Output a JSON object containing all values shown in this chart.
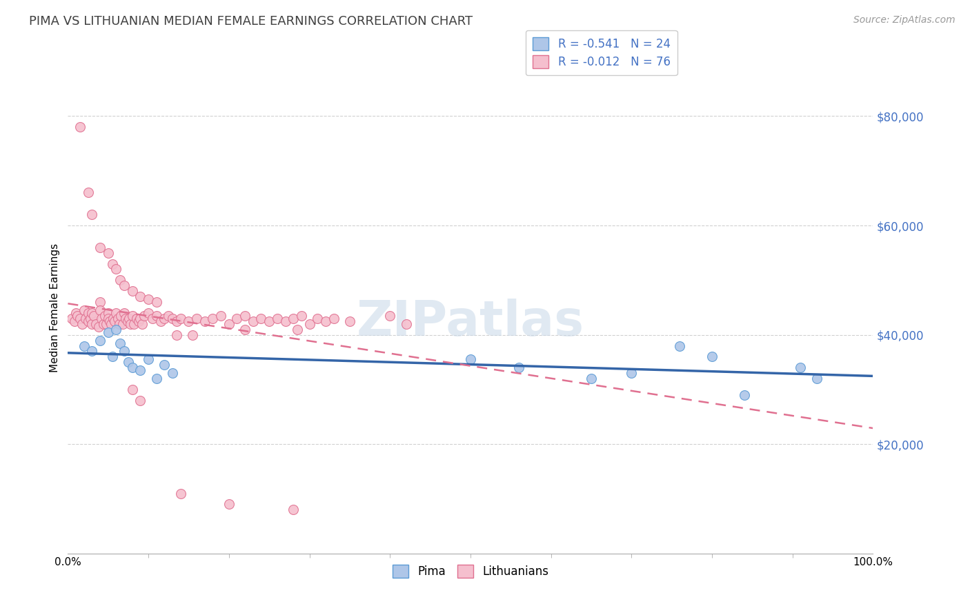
{
  "title": "PIMA VS LITHUANIAN MEDIAN FEMALE EARNINGS CORRELATION CHART",
  "source": "Source: ZipAtlas.com",
  "ylabel": "Median Female Earnings",
  "x_min": 0.0,
  "x_max": 1.0,
  "y_min": 0,
  "y_max": 90000,
  "yticks": [
    20000,
    40000,
    60000,
    80000
  ],
  "ytick_labels": [
    "$20,000",
    "$40,000",
    "$60,000",
    "$80,000"
  ],
  "xtick_labels": [
    "0.0%",
    "100.0%"
  ],
  "background_color": "#ffffff",
  "grid_color": "#d0d0d0",
  "pima_color": "#aec6e8",
  "pima_edge_color": "#5b9bd5",
  "lith_color": "#f5bfce",
  "lith_edge_color": "#e07090",
  "pima_line_color": "#3465a8",
  "lith_line_color": "#e07090",
  "legend_R_pima": "R = -0.541",
  "legend_N_pima": "N = 24",
  "legend_R_lith": "R = -0.012",
  "legend_N_lith": "N = 76",
  "legend_label_pima": "Pima",
  "legend_label_lith": "Lithuanians",
  "watermark": "ZIPatlas",
  "pima_x": [
    0.02,
    0.03,
    0.04,
    0.05,
    0.055,
    0.06,
    0.065,
    0.07,
    0.075,
    0.08,
    0.09,
    0.1,
    0.11,
    0.12,
    0.13,
    0.5,
    0.56,
    0.65,
    0.7,
    0.76,
    0.8,
    0.84,
    0.91,
    0.93
  ],
  "pima_y": [
    38000,
    37000,
    39000,
    40500,
    36000,
    41000,
    38500,
    37000,
    35000,
    34000,
    33500,
    35500,
    32000,
    34500,
    33000,
    35500,
    34000,
    32000,
    33000,
    38000,
    36000,
    29000,
    34000,
    32000
  ],
  "lith_x": [
    0.005,
    0.008,
    0.01,
    0.012,
    0.015,
    0.018,
    0.02,
    0.022,
    0.025,
    0.025,
    0.028,
    0.03,
    0.03,
    0.032,
    0.035,
    0.038,
    0.04,
    0.04,
    0.042,
    0.044,
    0.046,
    0.048,
    0.05,
    0.05,
    0.052,
    0.054,
    0.056,
    0.058,
    0.06,
    0.062,
    0.064,
    0.066,
    0.068,
    0.07,
    0.072,
    0.074,
    0.076,
    0.078,
    0.08,
    0.082,
    0.085,
    0.088,
    0.09,
    0.092,
    0.095,
    0.1,
    0.105,
    0.11,
    0.115,
    0.12,
    0.125,
    0.13,
    0.135,
    0.14,
    0.15,
    0.16,
    0.17,
    0.18,
    0.19,
    0.2,
    0.21,
    0.22,
    0.23,
    0.24,
    0.25,
    0.26,
    0.27,
    0.28,
    0.29,
    0.3,
    0.31,
    0.32,
    0.33,
    0.35,
    0.4,
    0.42
  ],
  "lith_y": [
    43000,
    42500,
    44000,
    43500,
    43000,
    42000,
    44500,
    43000,
    44000,
    42500,
    43000,
    44000,
    42000,
    43500,
    42000,
    41500,
    46000,
    44500,
    43000,
    42000,
    43500,
    42000,
    44000,
    43000,
    42500,
    42000,
    43000,
    42500,
    44000,
    43000,
    42000,
    43500,
    42000,
    44000,
    43000,
    42500,
    43000,
    42000,
    43500,
    42000,
    43000,
    42500,
    43000,
    42000,
    43500,
    44000,
    43000,
    43500,
    42500,
    43000,
    43500,
    43000,
    42500,
    43000,
    42500,
    43000,
    42500,
    43000,
    43500,
    42000,
    43000,
    43500,
    42500,
    43000,
    42500,
    43000,
    42500,
    43000,
    43500,
    42000,
    43000,
    42500,
    43000,
    42500,
    43500,
    42000
  ],
  "lith_outlier_x": [
    0.015,
    0.025,
    0.03,
    0.04,
    0.05,
    0.055,
    0.06,
    0.065,
    0.07,
    0.08,
    0.09,
    0.1,
    0.11,
    0.135,
    0.155,
    0.22,
    0.285,
    0.08,
    0.09,
    0.14,
    0.2,
    0.28
  ],
  "lith_outlier_y": [
    78000,
    66000,
    62000,
    56000,
    55000,
    53000,
    52000,
    50000,
    49000,
    48000,
    47000,
    46500,
    46000,
    40000,
    40000,
    41000,
    41000,
    30000,
    28000,
    11000,
    9000,
    8000
  ]
}
